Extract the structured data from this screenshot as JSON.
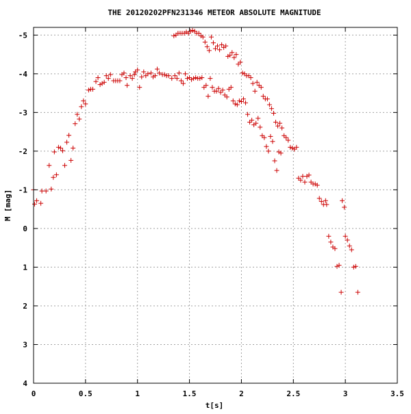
{
  "chart_data": {
    "type": "scatter",
    "title": "THE 20120202PFN231346 METEOR ABSOLUTE MAGNITUDE",
    "xlabel": "t[s]",
    "ylabel": "M [mag]",
    "xlim": [
      0,
      3.5
    ],
    "ylim": [
      4,
      -5.2
    ],
    "y_inverted": true,
    "grid": true,
    "marker": "+",
    "marker_color": "#cc0000",
    "x_ticks": [
      {
        "value": 0,
        "label": "0"
      },
      {
        "value": 0.5,
        "label": "0.5"
      },
      {
        "value": 1,
        "label": "1"
      },
      {
        "value": 1.5,
        "label": "1.5"
      },
      {
        "value": 2,
        "label": "2"
      },
      {
        "value": 2.5,
        "label": "2.5"
      },
      {
        "value": 3,
        "label": "3"
      },
      {
        "value": 3.5,
        "label": "3.5"
      }
    ],
    "y_ticks": [
      {
        "value": -5,
        "label": "-5"
      },
      {
        "value": -4,
        "label": "-4"
      },
      {
        "value": -3,
        "label": "-3"
      },
      {
        "value": -2,
        "label": "-2"
      },
      {
        "value": -1,
        "label": "-1"
      },
      {
        "value": 0,
        "label": "0"
      },
      {
        "value": 1,
        "label": "1"
      },
      {
        "value": 2,
        "label": "2"
      },
      {
        "value": 3,
        "label": "3"
      },
      {
        "value": 4,
        "label": "4"
      }
    ],
    "series": [
      {
        "points": [
          [
            0.0,
            -1.0
          ],
          [
            0.01,
            -0.63
          ],
          [
            0.03,
            -0.72
          ],
          [
            0.07,
            -0.65
          ],
          [
            0.08,
            -0.97
          ],
          [
            0.12,
            -0.97
          ],
          [
            0.15,
            -1.63
          ],
          [
            0.17,
            -1.02
          ],
          [
            0.19,
            -1.32
          ],
          [
            0.2,
            -1.98
          ],
          [
            0.22,
            -1.39
          ],
          [
            0.24,
            -2.1
          ],
          [
            0.26,
            -2.08
          ],
          [
            0.28,
            -2.01
          ],
          [
            0.3,
            -1.63
          ],
          [
            0.32,
            -2.23
          ],
          [
            0.34,
            -2.41
          ],
          [
            0.36,
            -1.76
          ],
          [
            0.38,
            -2.08
          ],
          [
            0.4,
            -2.71
          ],
          [
            0.42,
            -2.95
          ],
          [
            0.44,
            -2.83
          ],
          [
            0.46,
            -3.15
          ],
          [
            0.48,
            -3.3
          ],
          [
            0.5,
            -3.22
          ],
          [
            0.53,
            -3.58
          ],
          [
            0.55,
            -3.6
          ],
          [
            0.57,
            -3.6
          ],
          [
            0.6,
            -3.8
          ],
          [
            0.62,
            -3.9
          ],
          [
            0.64,
            -3.72
          ],
          [
            0.66,
            -3.75
          ],
          [
            0.68,
            -3.78
          ],
          [
            0.7,
            -3.95
          ],
          [
            0.72,
            -3.88
          ],
          [
            0.74,
            -3.98
          ],
          [
            0.77,
            -3.82
          ],
          [
            0.79,
            -3.82
          ],
          [
            0.81,
            -3.82
          ],
          [
            0.83,
            -3.82
          ],
          [
            0.85,
            -3.98
          ],
          [
            0.87,
            -4.02
          ],
          [
            0.89,
            -3.9
          ],
          [
            0.9,
            -3.7
          ],
          [
            0.93,
            -3.95
          ],
          [
            0.95,
            -3.88
          ],
          [
            0.97,
            -3.98
          ],
          [
            0.98,
            -4.05
          ],
          [
            1.0,
            -4.1
          ],
          [
            1.02,
            -3.65
          ],
          [
            1.04,
            -3.92
          ],
          [
            1.06,
            -4.05
          ],
          [
            1.08,
            -3.95
          ],
          [
            1.1,
            -4.0
          ],
          [
            1.13,
            -4.02
          ],
          [
            1.15,
            -3.92
          ],
          [
            1.17,
            -3.95
          ],
          [
            1.19,
            -4.12
          ],
          [
            1.21,
            -4.02
          ],
          [
            1.24,
            -3.98
          ],
          [
            1.26,
            -3.98
          ],
          [
            1.28,
            -3.95
          ],
          [
            1.3,
            -3.95
          ],
          [
            1.33,
            -3.88
          ],
          [
            1.36,
            -3.95
          ],
          [
            1.38,
            -3.88
          ],
          [
            1.4,
            -4.02
          ],
          [
            1.42,
            -3.82
          ],
          [
            1.44,
            -3.75
          ],
          [
            1.46,
            -4.0
          ],
          [
            1.48,
            -3.88
          ],
          [
            1.5,
            -3.9
          ],
          [
            1.52,
            -3.85
          ],
          [
            1.54,
            -3.88
          ],
          [
            1.56,
            -3.9
          ],
          [
            1.58,
            -3.88
          ],
          [
            1.6,
            -3.88
          ],
          [
            1.62,
            -3.9
          ],
          [
            1.64,
            -3.65
          ],
          [
            1.66,
            -3.7
          ],
          [
            1.68,
            -3.42
          ],
          [
            1.7,
            -3.88
          ],
          [
            1.72,
            -3.65
          ],
          [
            1.74,
            -3.55
          ],
          [
            1.76,
            -3.55
          ],
          [
            1.78,
            -3.62
          ],
          [
            1.8,
            -3.52
          ],
          [
            1.82,
            -3.58
          ],
          [
            1.84,
            -3.45
          ],
          [
            1.86,
            -3.4
          ],
          [
            1.88,
            -3.6
          ],
          [
            1.9,
            -3.65
          ],
          [
            1.92,
            -3.3
          ],
          [
            1.94,
            -3.22
          ],
          [
            1.96,
            -3.2
          ],
          [
            1.98,
            -3.3
          ],
          [
            2.0,
            -3.28
          ],
          [
            2.02,
            -3.35
          ],
          [
            2.04,
            -3.25
          ],
          [
            2.06,
            -2.95
          ],
          [
            2.08,
            -2.75
          ],
          [
            2.1,
            -2.8
          ],
          [
            2.12,
            -2.68
          ],
          [
            2.14,
            -2.72
          ],
          [
            2.16,
            -2.85
          ],
          [
            2.18,
            -2.62
          ],
          [
            2.2,
            -2.4
          ],
          [
            2.22,
            -2.35
          ],
          [
            2.24,
            -2.12
          ],
          [
            2.26,
            -2.0
          ],
          [
            2.28,
            -2.38
          ],
          [
            2.3,
            -2.25
          ],
          [
            2.32,
            -1.75
          ],
          [
            2.34,
            -1.5
          ],
          [
            2.36,
            -1.98
          ],
          [
            2.38,
            -1.95
          ],
          [
            1.35,
            -4.98
          ],
          [
            1.37,
            -5.0
          ],
          [
            1.39,
            -5.05
          ],
          [
            1.41,
            -5.05
          ],
          [
            1.43,
            -5.05
          ],
          [
            1.45,
            -5.05
          ],
          [
            1.47,
            -5.08
          ],
          [
            1.49,
            -5.05
          ],
          [
            1.51,
            -5.1
          ],
          [
            1.53,
            -5.12
          ],
          [
            1.55,
            -5.1
          ],
          [
            1.57,
            -5.05
          ],
          [
            1.59,
            -5.05
          ],
          [
            1.61,
            -4.98
          ],
          [
            1.63,
            -4.95
          ],
          [
            1.65,
            -4.82
          ],
          [
            1.67,
            -4.7
          ],
          [
            1.69,
            -4.6
          ],
          [
            1.71,
            -4.95
          ],
          [
            1.73,
            -4.8
          ],
          [
            1.75,
            -4.65
          ],
          [
            1.77,
            -4.72
          ],
          [
            1.79,
            -4.62
          ],
          [
            1.81,
            -4.75
          ],
          [
            1.83,
            -4.68
          ],
          [
            1.85,
            -4.72
          ],
          [
            1.87,
            -4.45
          ],
          [
            1.89,
            -4.48
          ],
          [
            1.91,
            -4.55
          ],
          [
            1.93,
            -4.42
          ],
          [
            1.95,
            -4.5
          ],
          [
            1.97,
            -4.25
          ],
          [
            1.99,
            -4.3
          ],
          [
            2.01,
            -4.02
          ],
          [
            2.03,
            -4.0
          ],
          [
            2.05,
            -3.95
          ],
          [
            2.07,
            -3.95
          ],
          [
            2.09,
            -3.9
          ],
          [
            2.11,
            -3.75
          ],
          [
            2.13,
            -3.55
          ],
          [
            2.15,
            -3.78
          ],
          [
            2.17,
            -3.7
          ],
          [
            2.19,
            -3.65
          ],
          [
            2.21,
            -3.42
          ],
          [
            2.23,
            -3.35
          ],
          [
            2.25,
            -3.35
          ],
          [
            2.27,
            -3.2
          ],
          [
            2.29,
            -3.1
          ],
          [
            2.31,
            -2.98
          ],
          [
            2.33,
            -2.75
          ],
          [
            2.35,
            -2.65
          ],
          [
            2.37,
            -2.72
          ],
          [
            2.39,
            -2.6
          ],
          [
            2.41,
            -2.4
          ],
          [
            2.43,
            -2.35
          ],
          [
            2.45,
            -2.28
          ],
          [
            2.47,
            -2.1
          ],
          [
            2.49,
            -2.08
          ],
          [
            2.51,
            -2.05
          ],
          [
            2.53,
            -2.1
          ],
          [
            2.55,
            -1.3
          ],
          [
            2.57,
            -1.25
          ],
          [
            2.59,
            -1.35
          ],
          [
            2.61,
            -1.2
          ],
          [
            2.63,
            -1.35
          ],
          [
            2.65,
            -1.38
          ],
          [
            2.67,
            -1.2
          ],
          [
            2.69,
            -1.15
          ],
          [
            2.71,
            -1.15
          ],
          [
            2.73,
            -1.12
          ],
          [
            2.75,
            -0.78
          ],
          [
            2.77,
            -0.7
          ],
          [
            2.79,
            -0.62
          ],
          [
            2.81,
            -0.72
          ],
          [
            2.82,
            -0.62
          ],
          [
            2.84,
            0.2
          ],
          [
            2.86,
            0.35
          ],
          [
            2.88,
            0.48
          ],
          [
            2.9,
            0.52
          ],
          [
            2.92,
            0.98
          ],
          [
            2.94,
            0.95
          ],
          [
            2.96,
            1.65
          ],
          [
            2.97,
            -0.72
          ],
          [
            2.99,
            -0.55
          ],
          [
            3.0,
            0.2
          ],
          [
            3.02,
            0.3
          ],
          [
            3.04,
            0.45
          ],
          [
            3.06,
            0.55
          ],
          [
            3.08,
            1.0
          ],
          [
            3.1,
            0.98
          ],
          [
            3.12,
            1.65
          ]
        ]
      }
    ]
  }
}
